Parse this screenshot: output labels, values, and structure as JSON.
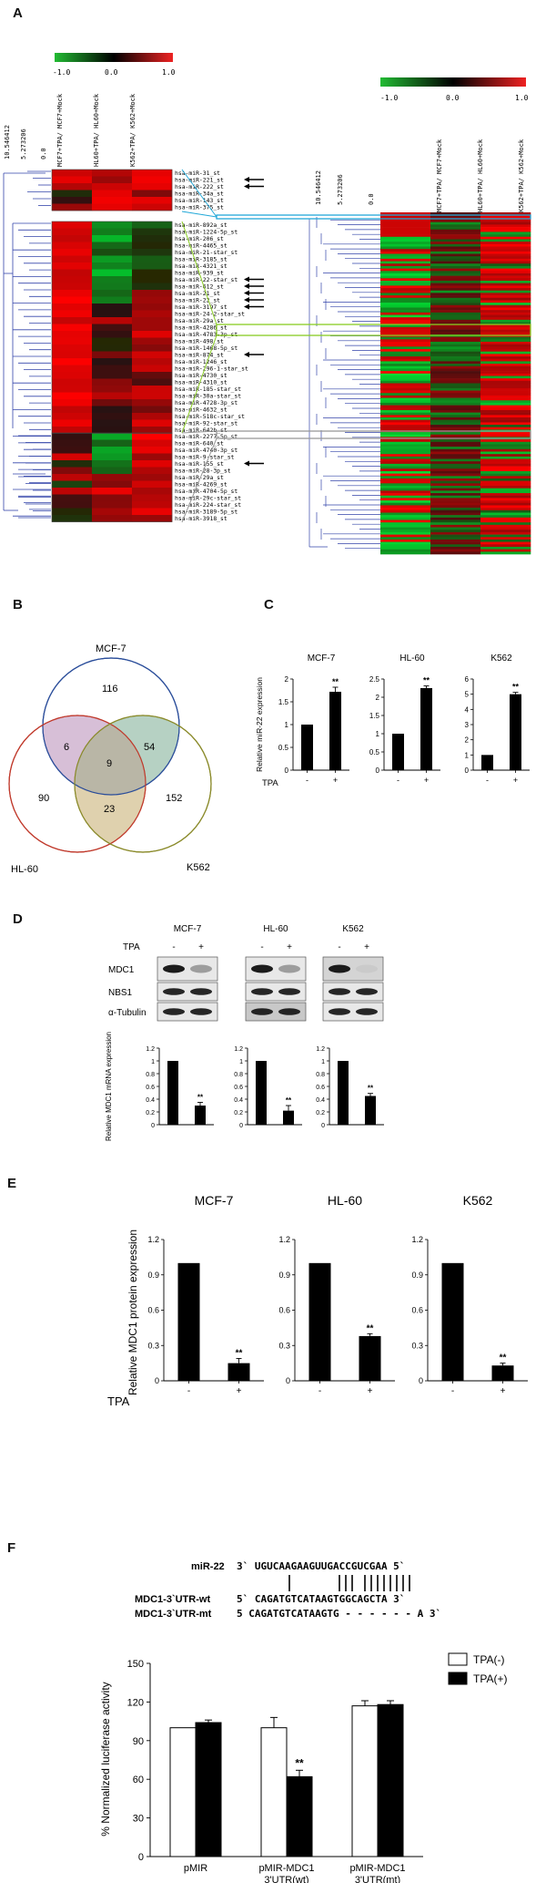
{
  "panel_a": {
    "letter": "A",
    "scale_left": {
      "min": "-1.0",
      "mid": "0.0",
      "max": "1.0"
    },
    "scale_right": {
      "min": "-1.0",
      "mid": "0.0",
      "max": "1.0"
    },
    "dendro_ticks_left": [
      "10.546412",
      "5.273206",
      "0.0"
    ],
    "dendro_ticks_right": [
      "10.546412",
      "5.273206",
      "0.0"
    ],
    "columns_left": [
      "MCF7+TPA/ MCF7+Mock",
      "HL60+TPA/ HL60+Mock",
      "K562+TPA/ K562+Mock"
    ],
    "columns_right": [
      "MCF7+TPA/ MCF7+Mock",
      "HL60+TPA/ HL60+Mock",
      "K562+TPA/ K562+Mock"
    ],
    "mirna_group1": [
      "hsa-miR-31_st",
      "hsa-miR-221_st",
      "hsa-miR-222_st",
      "hsa-miR-34a_st",
      "hsa-miR-143_st",
      "hsa-miR-375_st"
    ],
    "mirna_group2": [
      "hsa-miR-892a_st",
      "hsa-miR-1224-5p_st",
      "hsa-miR-206_st",
      "hsa-miR-4465_st",
      "hsa-miR-21-star_st",
      "hsa-miR-3185_st",
      "hsa-miR-4321_st",
      "hsa-miR-939_st",
      "hsa-miR-22-star_st",
      "hsa-miR-612_st",
      "hsa-miR-21_st",
      "hsa-miR-22_st",
      "hsa-miR-3197_st",
      "hsa-miR-24-2-star_st",
      "hsa-miR-29a_st",
      "hsa-miR-4286_st",
      "hsa-miR-4783-3p_st",
      "hsa-miR-498_st",
      "hsa-miR-1468-5p_st",
      "hsa-miR-874_st",
      "hsa-miR-1246_st",
      "hsa-miR-296-1-star_st",
      "hsa-miR-4730_st",
      "hsa-miR-4310_st",
      "hsa-miR-185-star_st",
      "hsa-miR-30a-star_st",
      "hsa-miR-4728-3p_st",
      "hsa-miR-4632_st",
      "hsa-miR-518c-star_st",
      "hsa-miR-92-star_st",
      "hsa-miR-642b_st"
    ],
    "mirna_group3": [
      "hsa-miR-2277-5p_st",
      "hsa-miR-640_st",
      "hsa-miR-4740-3p_st",
      "hsa-miR-9-star_st",
      "hsa-miR-155_st",
      "hsa-miR-28-3p_st",
      "hsa-miR-29a_st",
      "hsa-miR-4269_st",
      "hsa-miR-4704-5p_st",
      "hsa-miR-29c-star_st",
      "hsa-miR-224-star_st",
      "hsa-miR-3189-5p_st",
      "hsa-miR-3918_st"
    ],
    "colors": {
      "low": "#22aa33",
      "mid": "#000000",
      "high": "#ee2222",
      "cyan_box": "#22a8d8",
      "green_box": "#88cc22",
      "gray_box": "#999999",
      "dendro": "#3344aa"
    }
  },
  "panel_b": {
    "letter": "B",
    "labels": {
      "mcf7": "MCF-7",
      "hl60": "HL-60",
      "k562": "K562"
    },
    "counts": {
      "mcf7_only": "116",
      "hl60_only": "90",
      "k562_only": "152",
      "mcf7_hl60": "6",
      "mcf7_k562": "54",
      "hl60_k562": "23",
      "all": "9"
    },
    "colors": {
      "mcf7": "#2a4d9a",
      "hl60": "#c0392b",
      "k562": "#8a8a2a"
    }
  },
  "panel_c": {
    "letter": "C",
    "ylabel": "Relative miR-22 expression",
    "xlabel": "TPA",
    "x_signs": [
      "-",
      "+"
    ]
  },
  "panel_d": {
    "letter": "D",
    "cell_lines": [
      "MCF-7",
      "HL-60",
      "K562"
    ],
    "tpa_label": "TPA",
    "tpa_signs": [
      "-",
      "+"
    ],
    "blot_rows": [
      "MDC1",
      "NBS1",
      "α-Tubulin"
    ],
    "ylabel": "Relative MDC1 mRNA expression"
  },
  "panel_e": {
    "letter": "E",
    "ylabel": "Relative MDC1 protein expression",
    "xlabel": "TPA",
    "x_signs": [
      "-",
      "+"
    ]
  },
  "panel_f": {
    "letter": "F",
    "seq_mir_label": "miR-22",
    "seq_mir": "3` UGUCAAGAAGUUGACCGUCGAA 5`",
    "seq_wt_label": "MDC1-3`UTR-wt",
    "seq_wt": "5` CAGATGTCATAAGTGGCAGCTA 3`",
    "seq_mt_label": "MDC1-3`UTR-mt",
    "seq_mt": "5 CAGATGTCATAAGTG - - - - - - A 3`",
    "legend_neg": "TPA(-)",
    "legend_pos": "TPA(+)",
    "ylabel": "% Normalized luciferase activity"
  },
  "chart_data": [
    {
      "type": "bar",
      "title": "MCF-7",
      "panel": "C",
      "categories": [
        "-",
        "+"
      ],
      "values": [
        1.0,
        1.72
      ],
      "errors": [
        0,
        0.1
      ],
      "significance": [
        "",
        "**"
      ],
      "ylabel": "Relative miR-22 expression",
      "xlabel": "TPA",
      "ylim": [
        0,
        2
      ],
      "yticks": [
        0,
        0.5,
        1,
        1.5,
        2
      ]
    },
    {
      "type": "bar",
      "title": "HL-60",
      "panel": "C",
      "categories": [
        "-",
        "+"
      ],
      "values": [
        1.0,
        2.25
      ],
      "errors": [
        0,
        0.06
      ],
      "significance": [
        "",
        "**"
      ],
      "xlabel": "TPA",
      "ylim": [
        0,
        2.5
      ],
      "yticks": [
        0,
        0.5,
        1,
        1.5,
        2,
        2.5
      ]
    },
    {
      "type": "bar",
      "title": "K562",
      "panel": "C",
      "categories": [
        "-",
        "+"
      ],
      "values": [
        1.0,
        5.0
      ],
      "errors": [
        0,
        0.12
      ],
      "significance": [
        "",
        "**"
      ],
      "xlabel": "TPA",
      "ylim": [
        0,
        6
      ],
      "yticks": [
        0,
        1,
        2,
        3,
        4,
        5,
        6
      ]
    },
    {
      "type": "bar",
      "panel": "D",
      "categories": [
        "-",
        "+"
      ],
      "values": [
        1.0,
        0.3
      ],
      "errors": [
        0,
        0.05
      ],
      "significance": [
        "",
        "**"
      ],
      "ylabel": "Relative MDC1 mRNA expression",
      "ylim": [
        0,
        1.2
      ],
      "yticks": [
        0,
        0.2,
        0.4,
        0.6,
        0.8,
        1,
        1.2
      ]
    },
    {
      "type": "bar",
      "panel": "D",
      "categories": [
        "-",
        "+"
      ],
      "values": [
        1.0,
        0.22
      ],
      "errors": [
        0,
        0.08
      ],
      "significance": [
        "",
        "**"
      ],
      "ylim": [
        0,
        1.2
      ],
      "yticks": [
        0,
        0.2,
        0.4,
        0.6,
        0.8,
        1,
        1.2
      ]
    },
    {
      "type": "bar",
      "panel": "D",
      "categories": [
        "-",
        "+"
      ],
      "values": [
        1.0,
        0.45
      ],
      "errors": [
        0,
        0.04
      ],
      "significance": [
        "",
        "**"
      ],
      "ylim": [
        0,
        1.2
      ],
      "yticks": [
        0,
        0.2,
        0.4,
        0.6,
        0.8,
        1,
        1.2
      ]
    },
    {
      "type": "bar",
      "title": "MCF-7",
      "panel": "E",
      "categories": [
        "-",
        "+"
      ],
      "values": [
        1.0,
        0.15
      ],
      "errors": [
        0,
        0.04
      ],
      "significance": [
        "",
        "**"
      ],
      "ylabel": "Relative MDC1 protein expression",
      "xlabel": "TPA",
      "ylim": [
        0,
        1.2
      ],
      "yticks": [
        0,
        0.3,
        0.6,
        0.9,
        1.2
      ]
    },
    {
      "type": "bar",
      "title": "HL-60",
      "panel": "E",
      "categories": [
        "-",
        "+"
      ],
      "values": [
        1.0,
        0.38
      ],
      "errors": [
        0,
        0.02
      ],
      "significance": [
        "",
        "**"
      ],
      "ylim": [
        0,
        1.2
      ],
      "yticks": [
        0,
        0.3,
        0.6,
        0.9,
        1.2
      ]
    },
    {
      "type": "bar",
      "title": "K562",
      "panel": "E",
      "categories": [
        "-",
        "+"
      ],
      "values": [
        1.0,
        0.13
      ],
      "errors": [
        0,
        0.02
      ],
      "significance": [
        "",
        "**"
      ],
      "ylim": [
        0,
        1.2
      ],
      "yticks": [
        0,
        0.3,
        0.6,
        0.9,
        1.2
      ]
    },
    {
      "type": "bar",
      "panel": "F",
      "categories": [
        "pMIR",
        "pMIR-MDC1 3'UTR(wt)",
        "pMIR-MDC1 3'UTR(mt)"
      ],
      "series": [
        {
          "name": "TPA(-)",
          "values": [
            100,
            100,
            117
          ],
          "errors": [
            0,
            8,
            4
          ]
        },
        {
          "name": "TPA(+)",
          "values": [
            104,
            62,
            118
          ],
          "errors": [
            2,
            5,
            3
          ]
        }
      ],
      "significance": {
        "TPA(+)": [
          "",
          "**",
          ""
        ]
      },
      "ylabel": "% Normalized luciferase activity",
      "ylim": [
        0,
        150
      ],
      "yticks": [
        0,
        30,
        60,
        90,
        120,
        150
      ],
      "legend": "top-right"
    }
  ]
}
